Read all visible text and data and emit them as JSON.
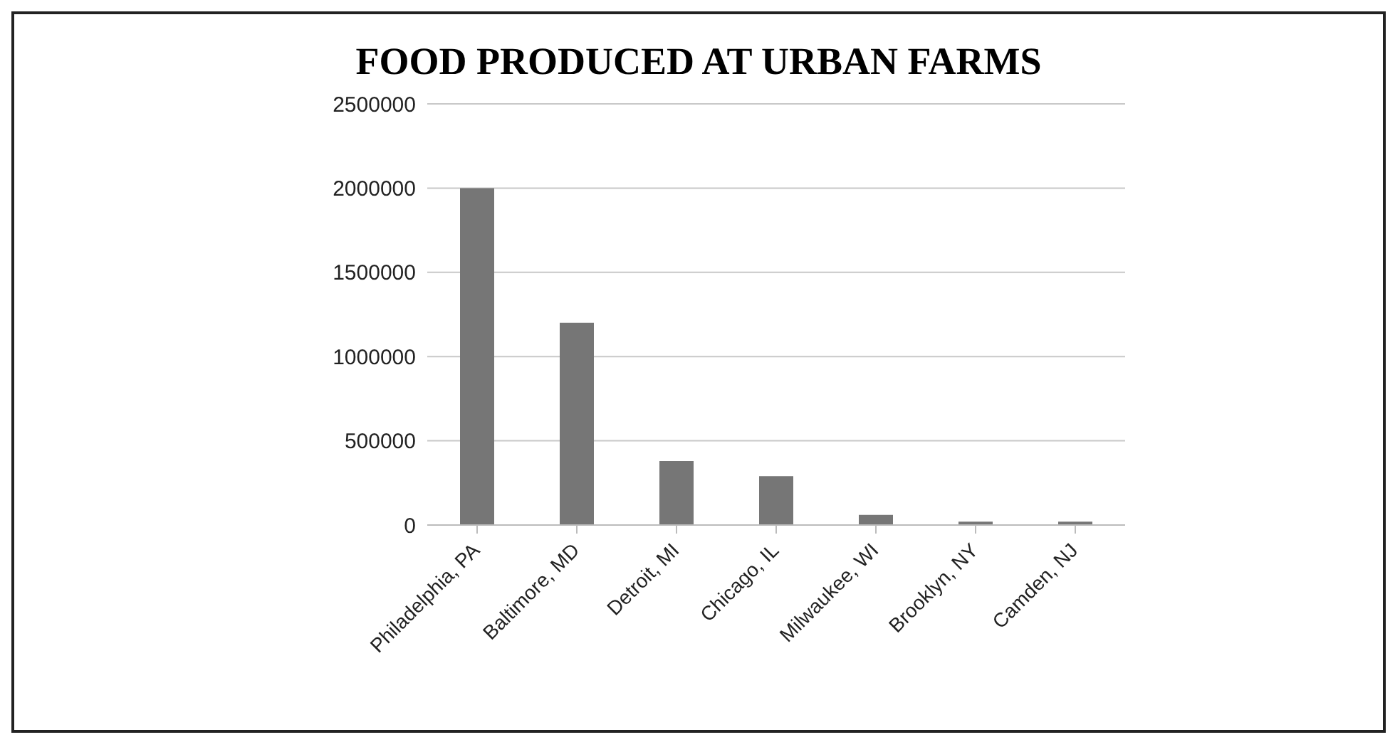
{
  "chart_data": {
    "type": "bar",
    "title": "FOOD PRODUCED AT URBAN FARMS",
    "categories": [
      "Philadelphia, PA",
      "Baltimore, MD",
      "Detroit, MI",
      "Chicago, IL",
      "Milwaukee, WI",
      "Brooklyn, NY",
      "Camden, NJ"
    ],
    "values": [
      2000000,
      1200000,
      380000,
      290000,
      60000,
      20000,
      20000
    ],
    "color": "#767676",
    "ylim": [
      0,
      2500000
    ],
    "yticks": [
      0,
      500000,
      1000000,
      1500000,
      2000000,
      2500000
    ],
    "grid": "y",
    "legend": false
  }
}
